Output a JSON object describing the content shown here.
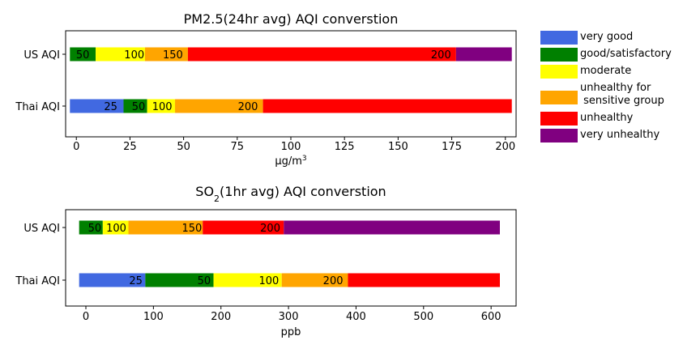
{
  "legend": {
    "items": [
      {
        "label": "very good",
        "color": "#4169e1"
      },
      {
        "label": "good/satisfactory",
        "color": "#008000"
      },
      {
        "label": "moderate",
        "color": "#ffff00"
      },
      {
        "label": "unhealthy for\n sensitive group",
        "color": "#ffa500"
      },
      {
        "label": "unhealthy",
        "color": "#ff0000"
      },
      {
        "label": "very unhealthy",
        "color": "#800080"
      }
    ]
  },
  "chart_data": [
    {
      "type": "bar",
      "orientation": "horizontal-stacked",
      "title_main": "PM2.5(24hr avg) AQI converstion",
      "title_sub": "",
      "xlabel_main": "μg/m",
      "xlabel_sup": "3",
      "xlim": [
        -5,
        205
      ],
      "xticks": [
        0,
        25,
        50,
        75,
        100,
        125,
        150,
        175,
        200
      ],
      "categories": [
        "US AQI",
        "Thai AQI"
      ],
      "rows": [
        {
          "name": "US AQI",
          "segments": [
            {
              "start": -3,
              "end": 9,
              "color": "#008000",
              "label": "50",
              "label_at": 3
            },
            {
              "start": 9,
              "end": 32,
              "color": "#ffff00",
              "label": "100",
              "label_at": 27
            },
            {
              "start": 32,
              "end": 52,
              "color": "#ffa500",
              "label": "150",
              "label_at": 45
            },
            {
              "start": 52,
              "end": 177,
              "color": "#ff0000",
              "label": "200",
              "label_at": 170
            },
            {
              "start": 177,
              "end": 203,
              "color": "#800080",
              "label": "",
              "label_at": 0
            }
          ]
        },
        {
          "name": "Thai AQI",
          "segments": [
            {
              "start": -3,
              "end": 22,
              "color": "#4169e1",
              "label": "25",
              "label_at": 16
            },
            {
              "start": 22,
              "end": 33,
              "color": "#008000",
              "label": "50",
              "label_at": 29
            },
            {
              "start": 33,
              "end": 46,
              "color": "#ffff00",
              "label": "100",
              "label_at": 40
            },
            {
              "start": 46,
              "end": 87,
              "color": "#ffa500",
              "label": "200",
              "label_at": 80
            },
            {
              "start": 87,
              "end": 203,
              "color": "#ff0000",
              "label": "",
              "label_at": 0
            }
          ]
        }
      ]
    },
    {
      "type": "bar",
      "orientation": "horizontal-stacked",
      "title_main": "SO",
      "title_sub": "2",
      "title_rest": "(1hr avg) AQI converstion",
      "xlabel_main": "ppb",
      "xlabel_sup": "",
      "xlim": [
        -30,
        637
      ],
      "xticks": [
        0,
        100,
        200,
        300,
        400,
        500,
        600
      ],
      "categories": [
        "US AQI",
        "Thai AQI"
      ],
      "rows": [
        {
          "name": "US AQI",
          "segments": [
            {
              "start": -10,
              "end": 25,
              "color": "#008000",
              "label": "50",
              "label_at": 13
            },
            {
              "start": 25,
              "end": 63,
              "color": "#ffff00",
              "label": "100",
              "label_at": 45
            },
            {
              "start": 63,
              "end": 173,
              "color": "#ffa500",
              "label": "150",
              "label_at": 157
            },
            {
              "start": 173,
              "end": 293,
              "color": "#ff0000",
              "label": "200",
              "label_at": 273
            },
            {
              "start": 293,
              "end": 613,
              "color": "#800080",
              "label": "",
              "label_at": 0
            }
          ]
        },
        {
          "name": "Thai AQI",
          "segments": [
            {
              "start": -10,
              "end": 88,
              "color": "#4169e1",
              "label": "25",
              "label_at": 74
            },
            {
              "start": 88,
              "end": 189,
              "color": "#008000",
              "label": "50",
              "label_at": 175
            },
            {
              "start": 189,
              "end": 290,
              "color": "#ffff00",
              "label": "100",
              "label_at": 271
            },
            {
              "start": 290,
              "end": 388,
              "color": "#ffa500",
              "label": "200",
              "label_at": 366
            },
            {
              "start": 388,
              "end": 613,
              "color": "#ff0000",
              "label": "",
              "label_at": 0
            }
          ]
        }
      ]
    }
  ]
}
